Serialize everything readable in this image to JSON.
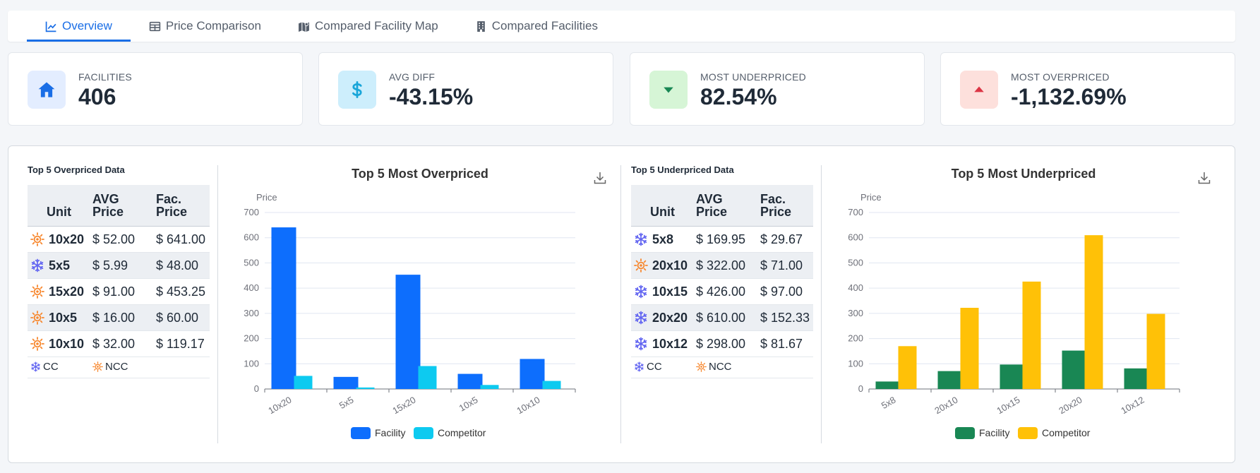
{
  "tabs": [
    {
      "label": "Overview",
      "icon": "line-chart-icon",
      "active": true
    },
    {
      "label": "Price Comparison",
      "icon": "table-icon",
      "active": false
    },
    {
      "label": "Compared Facility Map",
      "icon": "map-icon",
      "active": false
    },
    {
      "label": "Compared Facilities",
      "icon": "building-icon",
      "active": false
    }
  ],
  "kpis": [
    {
      "label": "FACILITIES",
      "value": "406",
      "icon": "home-icon",
      "bg": "#e3edff",
      "fg": "#1a6ee6"
    },
    {
      "label": "AVG DIFF",
      "value": "-43.15%",
      "icon": "dollar-icon",
      "bg": "#cdeefc",
      "fg": "#1aa6d9"
    },
    {
      "label": "MOST UNDERPRICED",
      "value": "82.54%",
      "icon": "caret-down-icon",
      "bg": "#d6f5d6",
      "fg": "#198754"
    },
    {
      "label": "MOST OVERPRICED",
      "value": "-1,132.69%",
      "icon": "caret-up-icon",
      "bg": "#fde0dc",
      "fg": "#dc3545"
    }
  ],
  "over_table": {
    "title": "Top 5 Overpriced Data",
    "headers": [
      "Unit",
      "AVG\nPrice",
      "Fac.\nPrice"
    ],
    "rows": [
      {
        "type": "NCC",
        "unit": "10x20",
        "avg": "$ 52.00",
        "fac": "$ 641.00"
      },
      {
        "type": "CC",
        "unit": "5x5",
        "avg": "$ 5.99",
        "fac": "$ 48.00"
      },
      {
        "type": "NCC",
        "unit": "15x20",
        "avg": "$ 91.00",
        "fac": "$ 453.25"
      },
      {
        "type": "NCC",
        "unit": "10x5",
        "avg": "$ 16.00",
        "fac": "$ 60.00"
      },
      {
        "type": "NCC",
        "unit": "10x10",
        "avg": "$ 32.00",
        "fac": "$ 119.17"
      }
    ],
    "legend": {
      "cc": "CC",
      "ncc": "NCC"
    }
  },
  "under_table": {
    "title": "Top 5 Underpriced Data",
    "headers": [
      "Unit",
      "AVG\nPrice",
      "Fac.\nPrice"
    ],
    "rows": [
      {
        "type": "CC",
        "unit": "5x8",
        "avg": "$ 169.95",
        "fac": "$ 29.67"
      },
      {
        "type": "NCC",
        "unit": "20x10",
        "avg": "$ 322.00",
        "fac": "$ 71.00"
      },
      {
        "type": "CC",
        "unit": "10x15",
        "avg": "$ 426.00",
        "fac": "$ 97.00"
      },
      {
        "type": "CC",
        "unit": "20x20",
        "avg": "$ 610.00",
        "fac": "$ 152.33"
      },
      {
        "type": "CC",
        "unit": "10x12",
        "avg": "$ 298.00",
        "fac": "$ 81.67"
      }
    ],
    "legend": {
      "cc": "CC",
      "ncc": "NCC"
    }
  },
  "chart_data": [
    {
      "type": "bar",
      "title": "Top 5 Most Overpriced",
      "ylabel": "Price",
      "ylim": [
        0,
        700
      ],
      "yticks": [
        0,
        100,
        200,
        300,
        400,
        500,
        600,
        700
      ],
      "categories": [
        "10x20",
        "5x5",
        "15x20",
        "10x5",
        "10x10"
      ],
      "series": [
        {
          "name": "Facility",
          "color": "#0d6efd",
          "values": [
            641,
            48,
            453.25,
            60,
            119.17
          ]
        },
        {
          "name": "Competitor",
          "color": "#0dcaf0",
          "values": [
            52,
            5.99,
            91,
            16,
            32
          ]
        }
      ],
      "legend": "bottom",
      "grid": true
    },
    {
      "type": "bar",
      "title": "Top 5 Most Underpriced",
      "ylabel": "Price",
      "ylim": [
        0,
        700
      ],
      "yticks": [
        0,
        100,
        200,
        300,
        400,
        500,
        600,
        700
      ],
      "categories": [
        "5x8",
        "20x10",
        "10x15",
        "20x20",
        "10x12"
      ],
      "series": [
        {
          "name": "Facility",
          "color": "#198754",
          "values": [
            29.67,
            71,
            97,
            152.33,
            81.67
          ]
        },
        {
          "name": "Competitor",
          "color": "#ffc107",
          "values": [
            169.95,
            322,
            426,
            610,
            298
          ]
        }
      ],
      "legend": "bottom",
      "grid": true
    }
  ]
}
